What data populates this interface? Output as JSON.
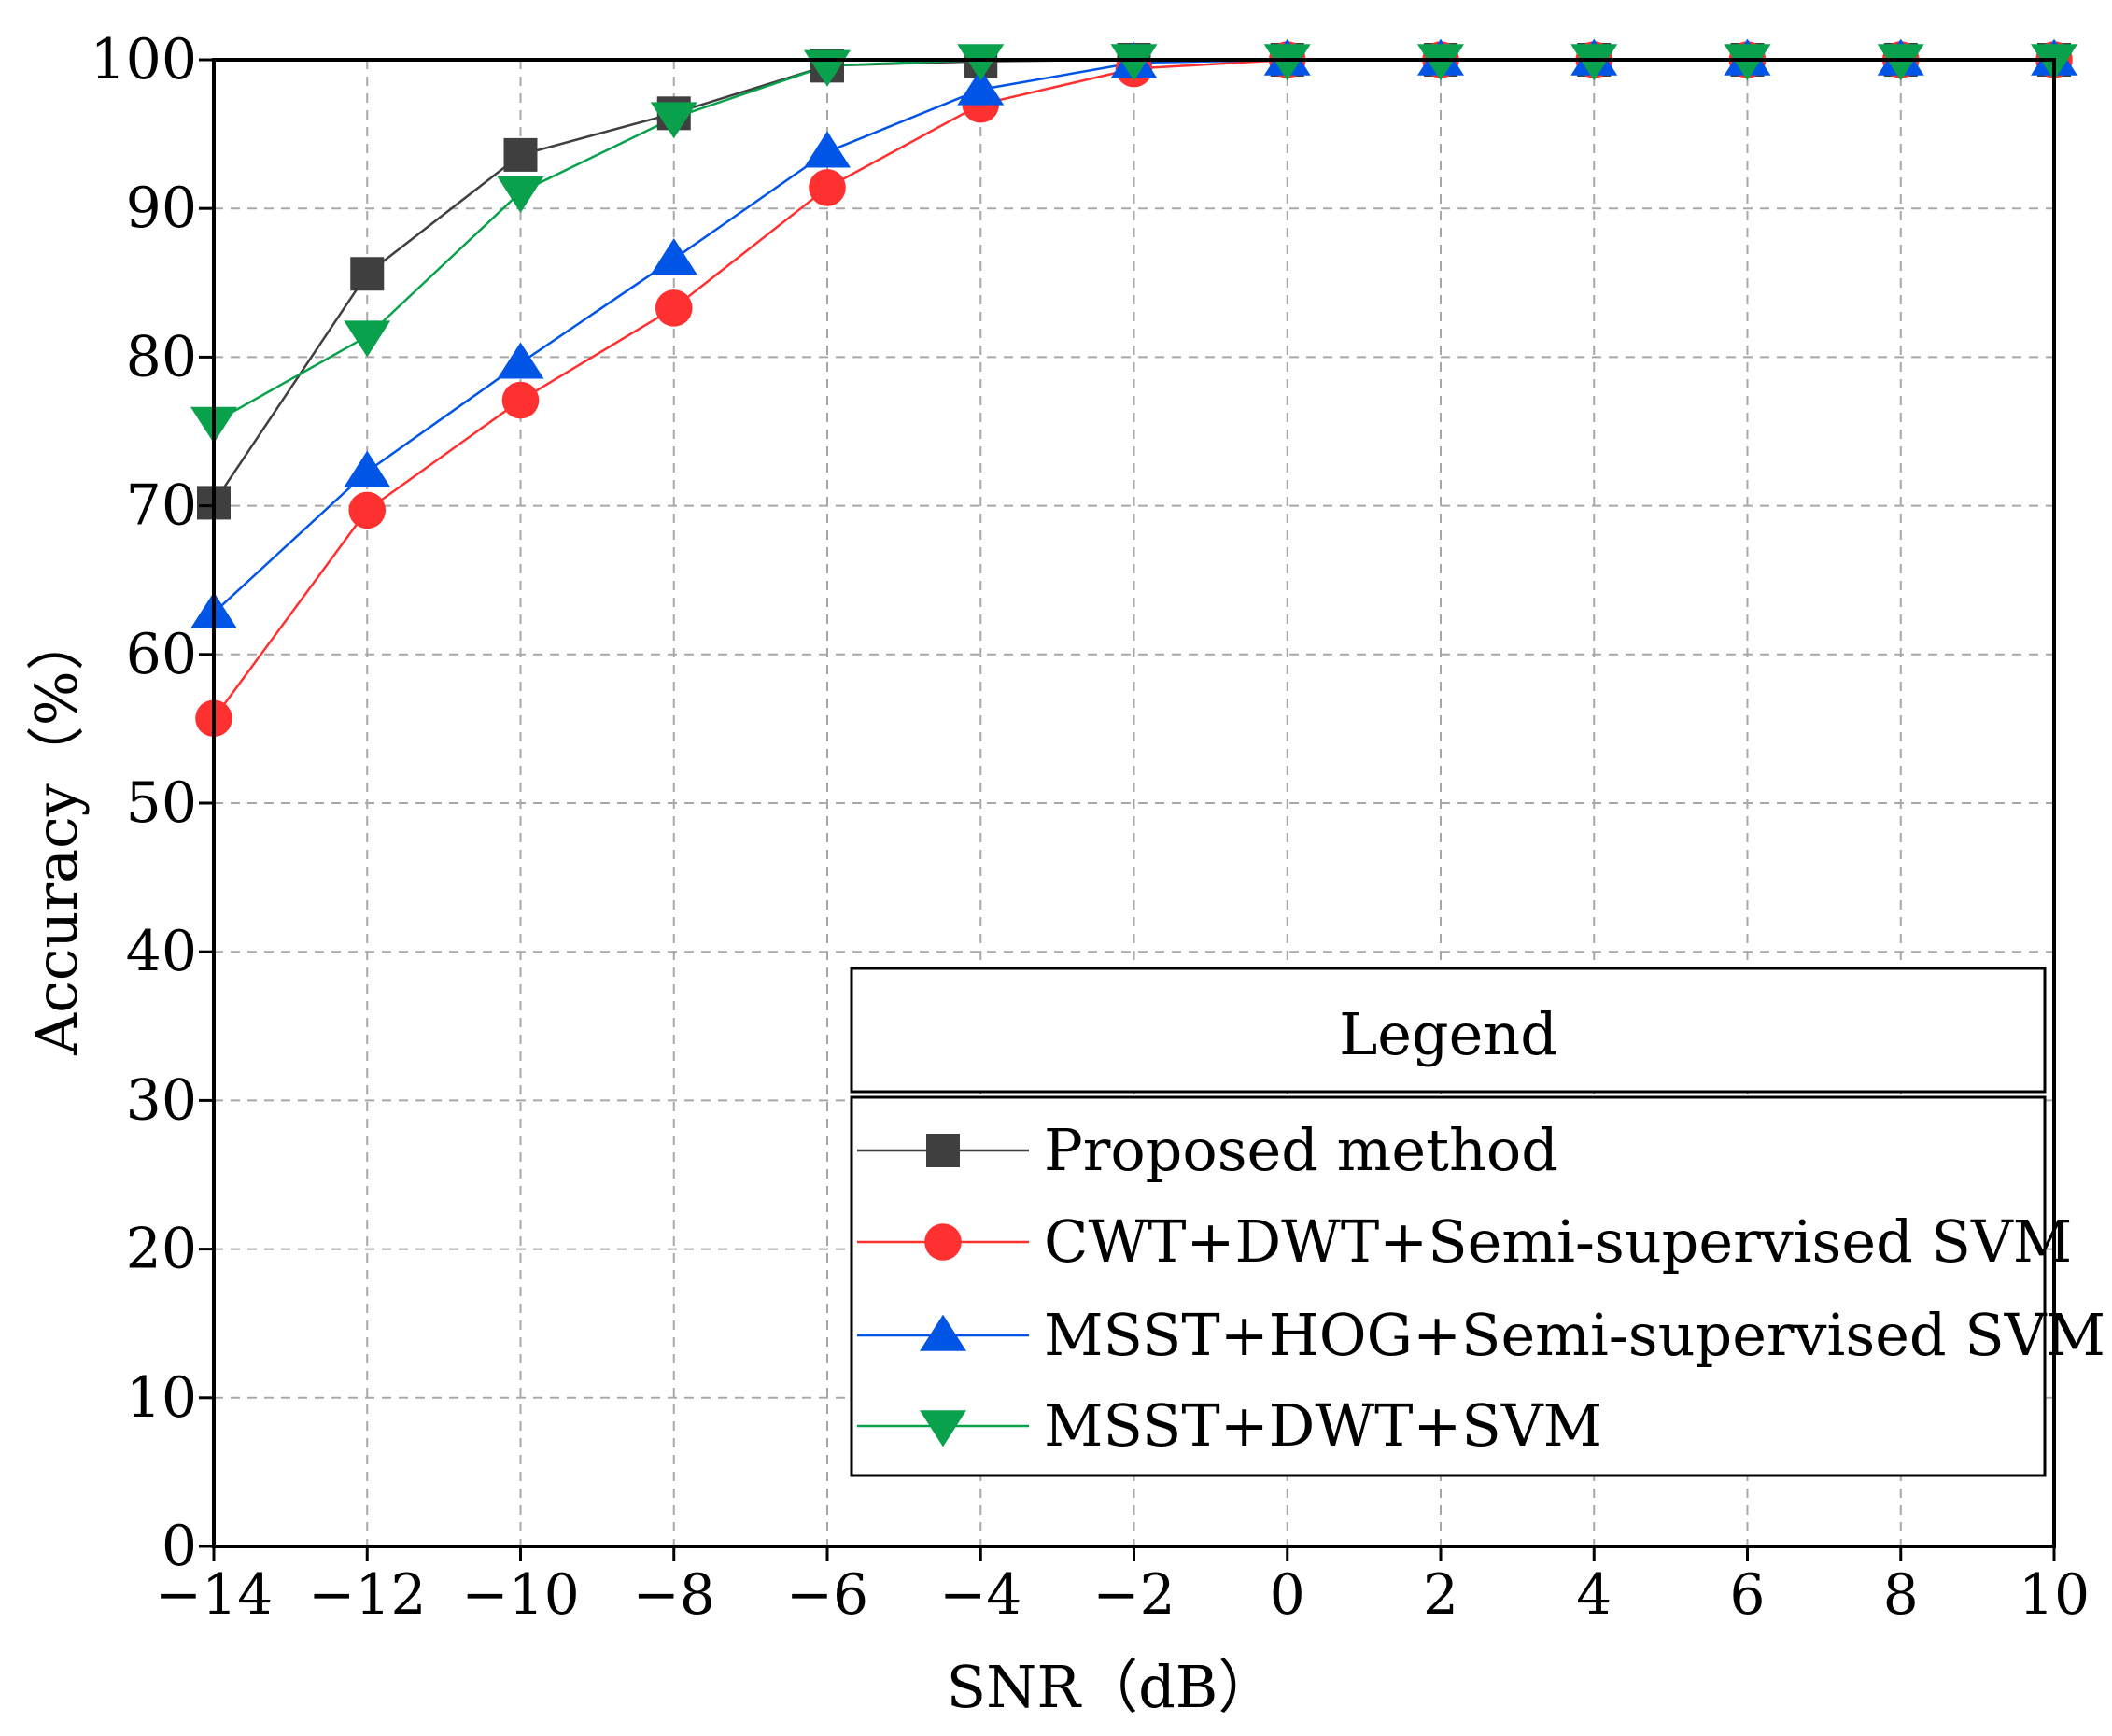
{
  "chart_data": {
    "type": "line",
    "xlabel": "SNR（dB）",
    "ylabel": "Accuracy（%）",
    "xlim": [
      -14,
      10
    ],
    "ylim": [
      0,
      100
    ],
    "grid": true,
    "x": [
      -14,
      -12,
      -10,
      -8,
      -6,
      -4,
      -2,
      0,
      2,
      4,
      6,
      8,
      10
    ],
    "x_tick_labels": [
      "−14",
      "−12",
      "−10",
      "−8",
      "−6",
      "−4",
      "−2",
      "0",
      "2",
      "4",
      "6",
      "8",
      "10"
    ],
    "y_ticks": [
      0,
      10,
      20,
      30,
      40,
      50,
      60,
      70,
      80,
      90,
      100
    ],
    "legend": {
      "title": "Legend",
      "placement": "bottom-right"
    },
    "series": [
      {
        "name": "Proposed method",
        "color": "#3f3f3f",
        "marker": "square",
        "values": [
          70.2,
          85.6,
          93.6,
          96.4,
          99.6,
          99.9,
          100,
          100,
          100,
          100,
          100,
          100,
          100
        ]
      },
      {
        "name": "CWT+DWT+Semi-supervised SVM",
        "color": "#ff3030",
        "marker": "circle",
        "values": [
          55.7,
          69.7,
          77.1,
          83.3,
          91.4,
          97.0,
          99.4,
          100,
          100,
          100,
          100,
          100,
          100
        ]
      },
      {
        "name": "MSST+HOG+Semi-supervised SVM",
        "color": "#0055e6",
        "marker": "triangle-up",
        "values": [
          62.8,
          72.3,
          79.6,
          86.6,
          93.8,
          98.0,
          99.8,
          100,
          100,
          100,
          100,
          100,
          100
        ]
      },
      {
        "name": "MSST+DWT+SVM",
        "color": "#0aa14d",
        "marker": "triangle-down",
        "values": [
          75.6,
          81.4,
          91.1,
          96.1,
          99.6,
          100,
          100,
          100,
          100,
          100,
          100,
          100,
          100
        ]
      }
    ]
  }
}
